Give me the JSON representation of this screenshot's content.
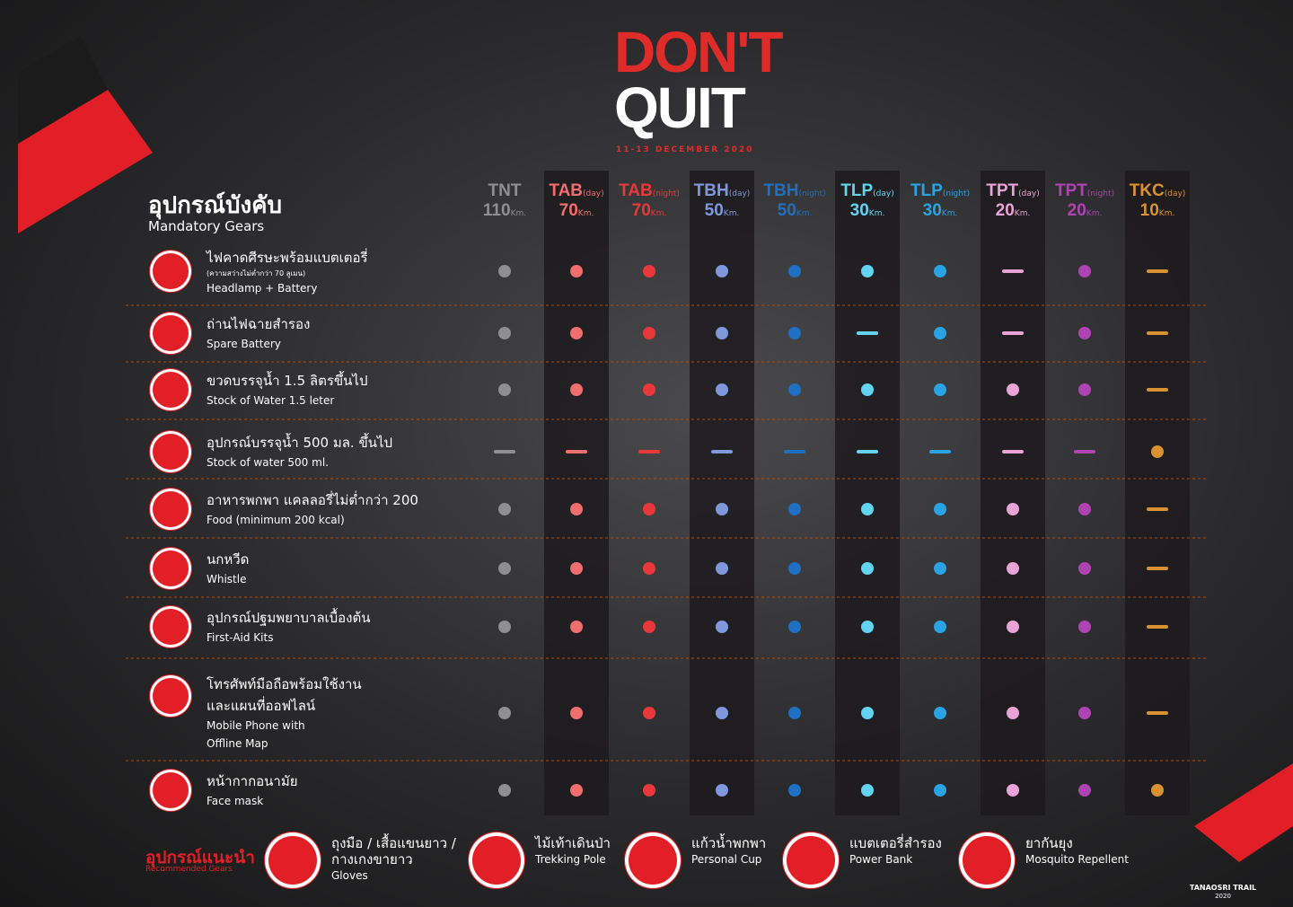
{
  "logo": {
    "line1": "DON'T",
    "line2": "QUIT",
    "date": "11-13 DECEMBER 2020"
  },
  "mandatory": {
    "title": "อุปกรณ์บังคับ",
    "subtitle": "Mandatory Gears"
  },
  "columns": [
    {
      "code": "TNT",
      "sub": null,
      "distance": "110",
      "unit": "Km.",
      "color": "#8e8e93"
    },
    {
      "code": "TAB",
      "sub": "(day)",
      "distance": "70",
      "unit": "Km.",
      "color": "#f26d6d"
    },
    {
      "code": "TAB",
      "sub": "(night)",
      "distance": "70",
      "unit": "Km.",
      "color": "#e8383a"
    },
    {
      "code": "TBH",
      "sub": "(day)",
      "distance": "50",
      "unit": "Km.",
      "color": "#7f98dc"
    },
    {
      "code": "TBH",
      "sub": "(night)",
      "distance": "50",
      "unit": "Km.",
      "color": "#1f6fc2"
    },
    {
      "code": "TLP",
      "sub": "(day)",
      "distance": "30",
      "unit": "Km.",
      "color": "#62d4f2"
    },
    {
      "code": "TLP",
      "sub": "(night)",
      "distance": "30",
      "unit": "Km.",
      "color": "#2aa3e2"
    },
    {
      "code": "TPT",
      "sub": "(day)",
      "distance": "20",
      "unit": "Km.",
      "color": "#eaa3d6"
    },
    {
      "code": "TPT",
      "sub": "(night)",
      "distance": "20",
      "unit": "Km.",
      "color": "#b043b4"
    },
    {
      "code": "TKC",
      "sub": "(day)",
      "distance": "10",
      "unit": "Km.",
      "color": "#d9922f"
    }
  ],
  "items": [
    {
      "thai": [
        "ไฟคาดศีรษะพร้อมแบตเตอรี่"
      ],
      "note": "(ความสว่างไม่ต่ำกว่า 70 ลูเมน)",
      "english": [
        "Headlamp + Battery"
      ],
      "marks": [
        "dot",
        "dot",
        "dot",
        "dot",
        "dot",
        "dot",
        "dot",
        "dash",
        "dot",
        "dash"
      ]
    },
    {
      "thai": [
        "ถ่านไฟฉายสำรอง"
      ],
      "english": [
        "Spare Battery"
      ],
      "marks": [
        "dot",
        "dot",
        "dot",
        "dot",
        "dot",
        "dash",
        "dot",
        "dash",
        "dot",
        "dash"
      ]
    },
    {
      "thai": [
        "ขวดบรรจุน้ำ 1.5 ลิตรขึ้นไป"
      ],
      "english": [
        "Stock of Water 1.5 leter"
      ],
      "marks": [
        "dot",
        "dot",
        "dot",
        "dot",
        "dot",
        "dot",
        "dot",
        "dot",
        "dot",
        "dash"
      ]
    },
    {
      "thai": [
        "อุปกรณ์บรรจุน้ำ 500 มล. ขึ้นไป"
      ],
      "english": [
        "Stock of water 500 ml."
      ],
      "marks": [
        "dash",
        "dash",
        "dash",
        "dash",
        "dash",
        "dash",
        "dash",
        "dash",
        "dash",
        "dot"
      ]
    },
    {
      "thai": [
        "อาหารพกพา แคลลอรี่ไม่ต่ำกว่า 200"
      ],
      "english": [
        "Food (minimum 200 kcal)"
      ],
      "marks": [
        "dot",
        "dot",
        "dot",
        "dot",
        "dot",
        "dot",
        "dot",
        "dot",
        "dot",
        "dash"
      ]
    },
    {
      "thai": [
        "นกหวีด"
      ],
      "english": [
        "Whistle"
      ],
      "marks": [
        "dot",
        "dot",
        "dot",
        "dot",
        "dot",
        "dot",
        "dot",
        "dot",
        "dot",
        "dash"
      ]
    },
    {
      "thai": [
        "อุปกรณ์ปฐมพยาบาลเบื้องต้น"
      ],
      "english": [
        "First-Aid Kits"
      ],
      "marks": [
        "dot",
        "dot",
        "dot",
        "dot",
        "dot",
        "dot",
        "dot",
        "dot",
        "dot",
        "dash"
      ]
    },
    {
      "thai": [
        "โทรศัพท์มือถือพร้อมใช้งาน",
        "และแผนที่ออฟไลน์"
      ],
      "english": [
        "Mobile Phone with",
        "Offline Map"
      ],
      "marks": [
        "dot",
        "dot",
        "dot",
        "dot",
        "dot",
        "dot",
        "dot",
        "dot",
        "dot",
        "dash"
      ]
    },
    {
      "thai": [
        "หน้ากากอนามัย"
      ],
      "english": [
        "Face mask"
      ],
      "marks": [
        "dot",
        "dot",
        "dot",
        "dot",
        "dot",
        "dot",
        "dot",
        "dot",
        "dot",
        "dot"
      ]
    }
  ],
  "recommended": {
    "title": "อุปกรณ์แนะนำ",
    "subtitle": "Recommended Gears",
    "items": [
      {
        "thai": [
          "ถุงมือ / เสื้อแขนยาว /",
          "กางเกงขายาว"
        ],
        "english": "Gloves"
      },
      {
        "thai": [
          "ไม้เท้าเดินป่า"
        ],
        "english": "Trekking Pole"
      },
      {
        "thai": [
          "แก้วน้ำพกพา"
        ],
        "english": "Personal Cup"
      },
      {
        "thai": [
          "แบตเตอรี่สำรอง"
        ],
        "english": "Power Bank"
      },
      {
        "thai": [
          "ยากันยุง"
        ],
        "english": "Mosquito Repellent"
      }
    ]
  },
  "brand": {
    "name": "TANAOSRI TRAIL",
    "year": "2020"
  }
}
